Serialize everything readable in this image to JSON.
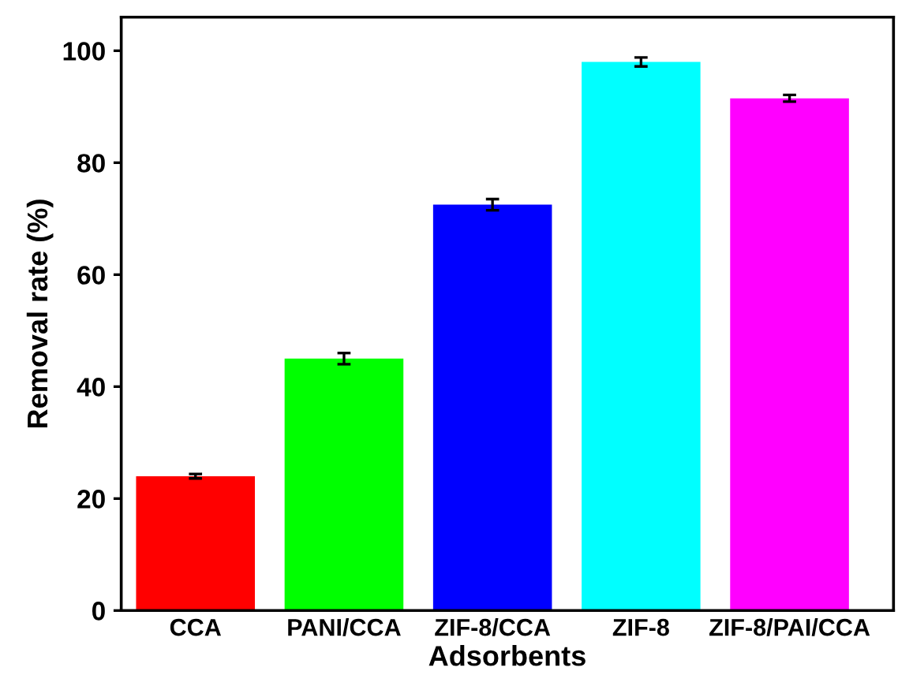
{
  "chart_data": {
    "type": "bar",
    "xlabel": "Adsorbents",
    "ylabel": "Removal rate (%)",
    "categories": [
      "CCA",
      "PANI/CCA",
      "ZIF-8/CCA",
      "ZIF-8",
      "ZIF-8/PAI/CCA"
    ],
    "values": [
      24.0,
      45.0,
      72.5,
      98.0,
      91.5
    ],
    "errors": [
      0.4,
      1.0,
      1.0,
      0.8,
      0.6
    ],
    "colors": [
      "#ff0000",
      "#00ff00",
      "#0000ff",
      "#00ffff",
      "#ff00ff"
    ],
    "ylim": [
      0,
      106
    ],
    "yticks": [
      0,
      20,
      40,
      60,
      80,
      100
    ],
    "grid": false,
    "legend": false
  }
}
